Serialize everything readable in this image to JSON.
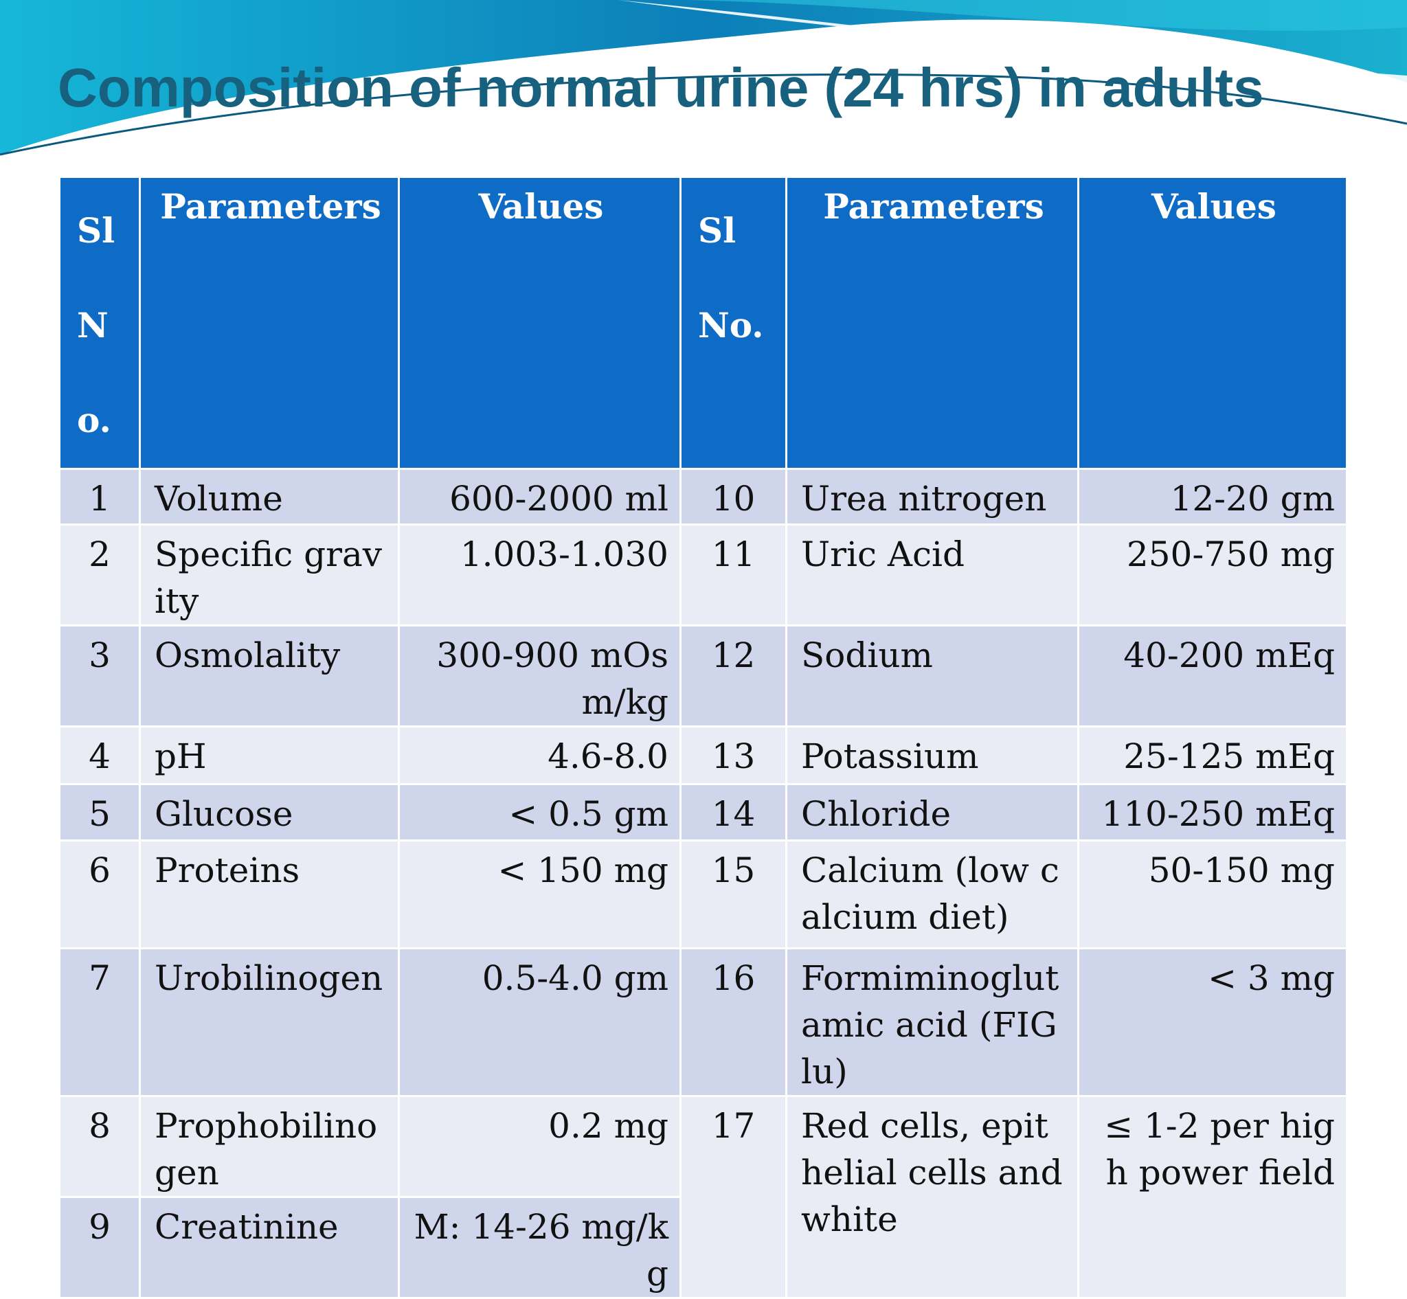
{
  "title": "Composition of normal urine (24 hrs) in adults",
  "table": {
    "header": [
      "Sl No.",
      "Parameters",
      "Values",
      "Sl No.",
      "Parameters",
      "Values"
    ],
    "rows": [
      [
        "1",
        "Volume",
        "600-2000 ml",
        "10",
        "Urea nitrogen",
        "12-20 gm"
      ],
      [
        "2",
        "Specific gravity",
        "1.003-1.030",
        "11",
        "Uric Acid",
        "250-750 mg"
      ],
      [
        "3",
        "Osmolality",
        "300-900 mOsm/kg",
        "12",
        "Sodium",
        "40-200 mEq"
      ],
      [
        "4",
        "pH",
        "4.6-8.0",
        "13",
        "Potassium",
        "25-125 mEq"
      ],
      [
        "5",
        "Glucose",
        "< 0.5 gm",
        "14",
        "Chloride",
        "110-250 mEq"
      ],
      [
        "6",
        "Proteins",
        "< 150 mg",
        "15",
        "Calcium (low calcium diet)",
        "50-150 mg"
      ],
      [
        "7",
        "Urobilinogen",
        "0.5-4.0 gm",
        "16",
        "Formiminoglutamic acid (FIGlu)",
        "< 3 mg"
      ],
      [
        "8",
        "Prophobilinogen",
        "0.2 mg",
        "17",
        "Red cells, epithelial cells and white",
        "≤ 1-2 per high power field"
      ],
      [
        "9",
        "Creatinine",
        "M: 14-26 mg/kg"
      ]
    ]
  }
}
